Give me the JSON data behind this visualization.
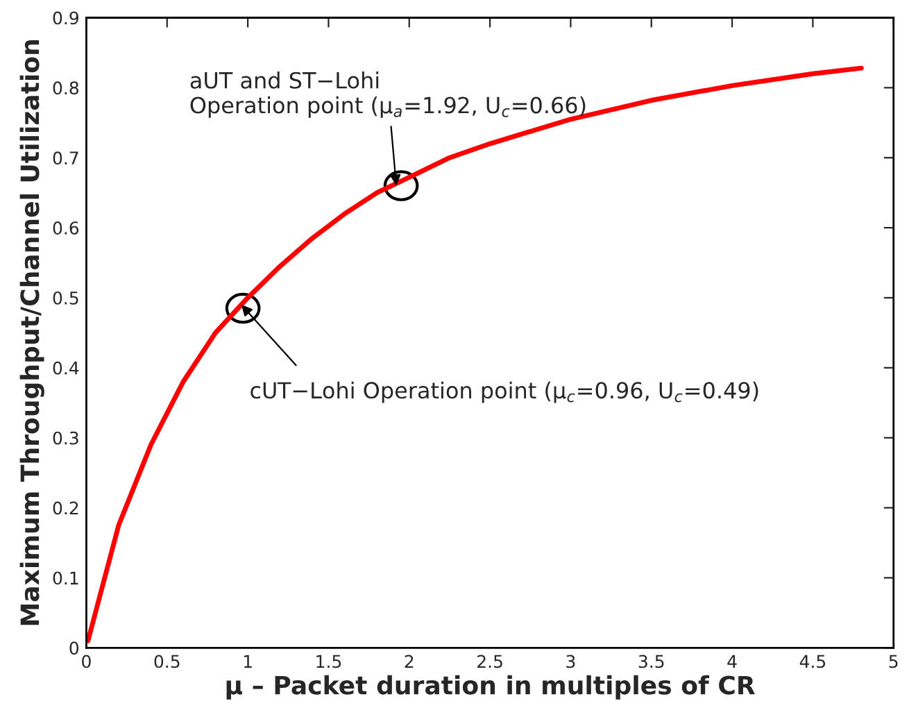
{
  "chart_data": {
    "type": "line",
    "xlabel": "μ – Packet duration in multiples of CR",
    "ylabel": "Maximum Throughput/Channel Utilization",
    "x": [
      0.01,
      0.2,
      0.4,
      0.6,
      0.8,
      1.0,
      1.2,
      1.4,
      1.6,
      1.8,
      2.0,
      2.25,
      2.5,
      3.0,
      3.5,
      4.0,
      4.5,
      4.8
    ],
    "series": [
      {
        "color": "#ff0000",
        "values": [
          0.01,
          0.175,
          0.29,
          0.38,
          0.45,
          0.5,
          0.545,
          0.585,
          0.62,
          0.65,
          0.672,
          0.7,
          0.72,
          0.755,
          0.782,
          0.803,
          0.82,
          0.828
        ]
      }
    ],
    "xlim": [
      0,
      5
    ],
    "ylim": [
      0,
      0.9
    ],
    "xticks": [
      0,
      0.5,
      1,
      1.5,
      2,
      2.5,
      3,
      3.5,
      4,
      4.5,
      5
    ],
    "yticks": [
      0,
      0.1,
      0.2,
      0.3,
      0.4,
      0.5,
      0.6,
      0.7,
      0.8,
      0.9
    ],
    "grid": false,
    "marker": "none",
    "line_style": "solid",
    "annotations": [
      {
        "text": "aUT and ST−Lohi\nOperation point (μ$_{a}$=1.92, U$_{c}$=0.66)",
        "x": 1.92,
        "y": 0.66
      },
      {
        "text": "cUT−Lohi Operation point (μ$_{c}$=0.96, U$_{c}$=0.49)",
        "x": 0.96,
        "y": 0.49
      }
    ]
  }
}
